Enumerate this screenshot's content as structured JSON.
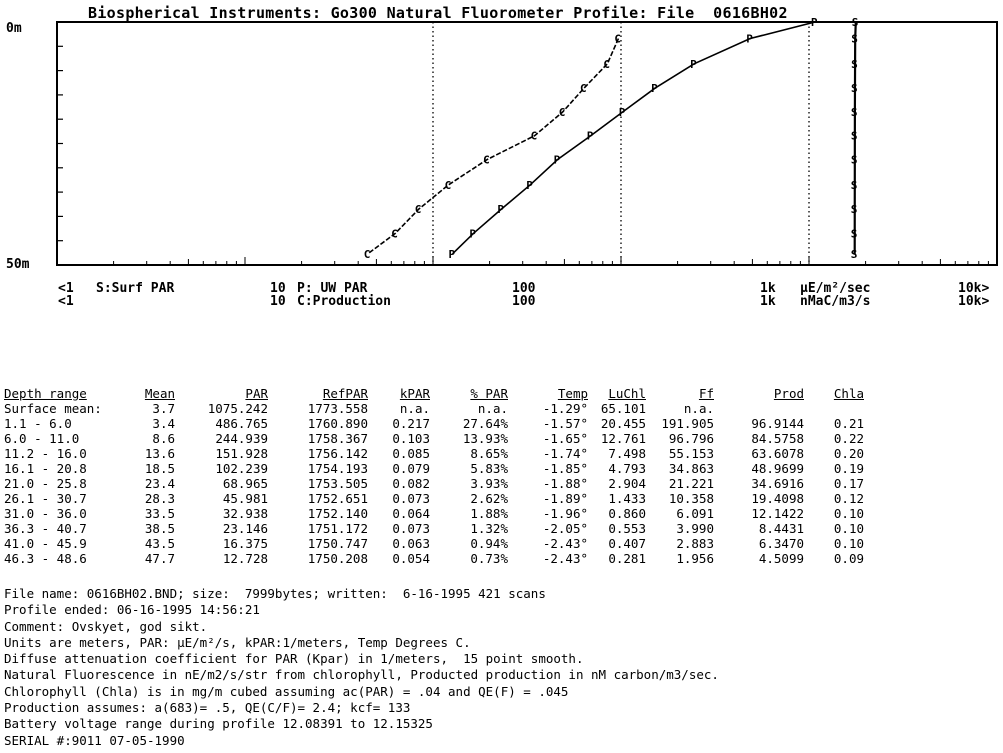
{
  "chart_data": {
    "type": "line",
    "title": "Biospherical Instruments: Go300 Natural Fluorometer Profile: File  0616BH02",
    "y_axis": {
      "top_label": "0m",
      "bottom_label": "50m",
      "range": [
        0,
        50
      ],
      "inverted": true
    },
    "x_axis": {
      "scale": "log",
      "range": [
        0.1,
        10000
      ],
      "tick_labels": [
        {
          "value": 0.1,
          "top": "<1",
          "bottom": "<1"
        },
        {
          "value": 10,
          "top": "10",
          "bottom": "10"
        },
        {
          "value": 100,
          "top": "100",
          "bottom": "100"
        },
        {
          "value": 1000,
          "top": "1k",
          "bottom": "1k"
        },
        {
          "value": 10000,
          "top": "10k>",
          "bottom": "10k>"
        }
      ]
    },
    "legend": [
      {
        "marker": "S",
        "label": "S:Surf PAR",
        "row": 1
      },
      {
        "marker": "P",
        "label": "P: UW PAR",
        "row": 1
      },
      {
        "marker": "C",
        "label": "C:Production",
        "row": 2
      }
    ],
    "units_labels": [
      "µE/m²/sec",
      "nMaC/m3/s"
    ],
    "series": [
      {
        "name": "P: UW PAR",
        "marker": "P",
        "values": [
          [
            1075.2,
            0
          ],
          [
            486.8,
            3.4
          ],
          [
            244.9,
            8.6
          ],
          [
            151.9,
            13.6
          ],
          [
            102.2,
            18.5
          ],
          [
            69.0,
            23.4
          ],
          [
            46.0,
            28.3
          ],
          [
            32.9,
            33.5
          ],
          [
            23.1,
            38.5
          ],
          [
            16.4,
            43.5
          ],
          [
            12.7,
            47.7
          ]
        ]
      },
      {
        "name": "S:Surf PAR",
        "marker": "S",
        "values": [
          [
            1773.6,
            0
          ],
          [
            1760.9,
            3.4
          ],
          [
            1758.4,
            8.6
          ],
          [
            1756.1,
            13.6
          ],
          [
            1754.2,
            18.5
          ],
          [
            1753.5,
            23.4
          ],
          [
            1752.7,
            28.3
          ],
          [
            1752.1,
            33.5
          ],
          [
            1751.2,
            38.5
          ],
          [
            1750.7,
            43.5
          ],
          [
            1750.2,
            47.7
          ]
        ]
      },
      {
        "name": "C:Production",
        "marker": "C",
        "values": [
          [
            96.9,
            3.4
          ],
          [
            84.6,
            8.6
          ],
          [
            63.6,
            13.6
          ],
          [
            49.0,
            18.5
          ],
          [
            34.7,
            23.4
          ],
          [
            19.4,
            28.3
          ],
          [
            12.1,
            33.5
          ],
          [
            8.4,
            38.5
          ],
          [
            6.3,
            43.5
          ],
          [
            4.5,
            47.7
          ]
        ]
      }
    ]
  },
  "table": {
    "headers": [
      "Depth range",
      "Mean",
      "PAR",
      "RefPAR",
      "kPAR",
      "% PAR",
      "Temp",
      "LuChl",
      "Ff",
      "Prod",
      "Chla"
    ],
    "rows": [
      [
        "Surface mean:",
        "3.7",
        "1075.242",
        "1773.558",
        "n.a.",
        "n.a.",
        "-1.29°",
        "65.101",
        "n.a.",
        "",
        ""
      ],
      [
        "1.1 -  6.0",
        "3.4",
        "486.765",
        "1760.890",
        "0.217",
        "27.64%",
        "-1.57°",
        "20.455",
        "191.905",
        "96.9144",
        "0.21"
      ],
      [
        "6.0 - 11.0",
        "8.6",
        "244.939",
        "1758.367",
        "0.103",
        "13.93%",
        "-1.65°",
        "12.761",
        "96.796",
        "84.5758",
        "0.22"
      ],
      [
        "11.2 - 16.0",
        "13.6",
        "151.928",
        "1756.142",
        "0.085",
        "8.65%",
        "-1.74°",
        "7.498",
        "55.153",
        "63.6078",
        "0.20"
      ],
      [
        "16.1 - 20.8",
        "18.5",
        "102.239",
        "1754.193",
        "0.079",
        "5.83%",
        "-1.85°",
        "4.793",
        "34.863",
        "48.9699",
        "0.19"
      ],
      [
        "21.0 - 25.8",
        "23.4",
        "68.965",
        "1753.505",
        "0.082",
        "3.93%",
        "-1.88°",
        "2.904",
        "21.221",
        "34.6916",
        "0.17"
      ],
      [
        "26.1 - 30.7",
        "28.3",
        "45.981",
        "1752.651",
        "0.073",
        "2.62%",
        "-1.89°",
        "1.433",
        "10.358",
        "19.4098",
        "0.12"
      ],
      [
        "31.0 - 36.0",
        "33.5",
        "32.938",
        "1752.140",
        "0.064",
        "1.88%",
        "-1.96°",
        "0.860",
        "6.091",
        "12.1422",
        "0.10"
      ],
      [
        "36.3 - 40.7",
        "38.5",
        "23.146",
        "1751.172",
        "0.073",
        "1.32%",
        "-2.05°",
        "0.553",
        "3.990",
        "8.4431",
        "0.10"
      ],
      [
        "41.0 - 45.9",
        "43.5",
        "16.375",
        "1750.747",
        "0.063",
        "0.94%",
        "-2.43°",
        "0.407",
        "2.883",
        "6.3470",
        "0.10"
      ],
      [
        "46.3 - 48.6",
        "47.7",
        "12.728",
        "1750.208",
        "0.054",
        "0.73%",
        "-2.43°",
        "0.281",
        "1.956",
        "4.5099",
        "0.09"
      ]
    ]
  },
  "notes": [
    "File name: 0616BH02.BND; size:  7999bytes; written:  6-16-1995 421 scans",
    "Profile ended: 06-16-1995 14:56:21",
    "Comment: Ovskyet, god sikt.",
    "Units are meters, PAR: µE/m²/s, kPAR:1/meters, Temp Degrees C.",
    "Diffuse attenuation coefficient for PAR (Kpar) in 1/meters,  15 point smooth.",
    "Natural Fluorescence in nE/m2/s/str from chlorophyll, Producted production in nM carbon/m3/sec.",
    "Chlorophyll (Chla) is in mg/m cubed assuming ac(PAR) = .04 and QE(F) = .045",
    "Production assumes: a(683)= .5, QE(C/F)= 2.4; kcf= 133",
    "Battery voltage range during profile 12.08391 to 12.15325",
    "SERIAL #:9011 07-05-1990"
  ]
}
